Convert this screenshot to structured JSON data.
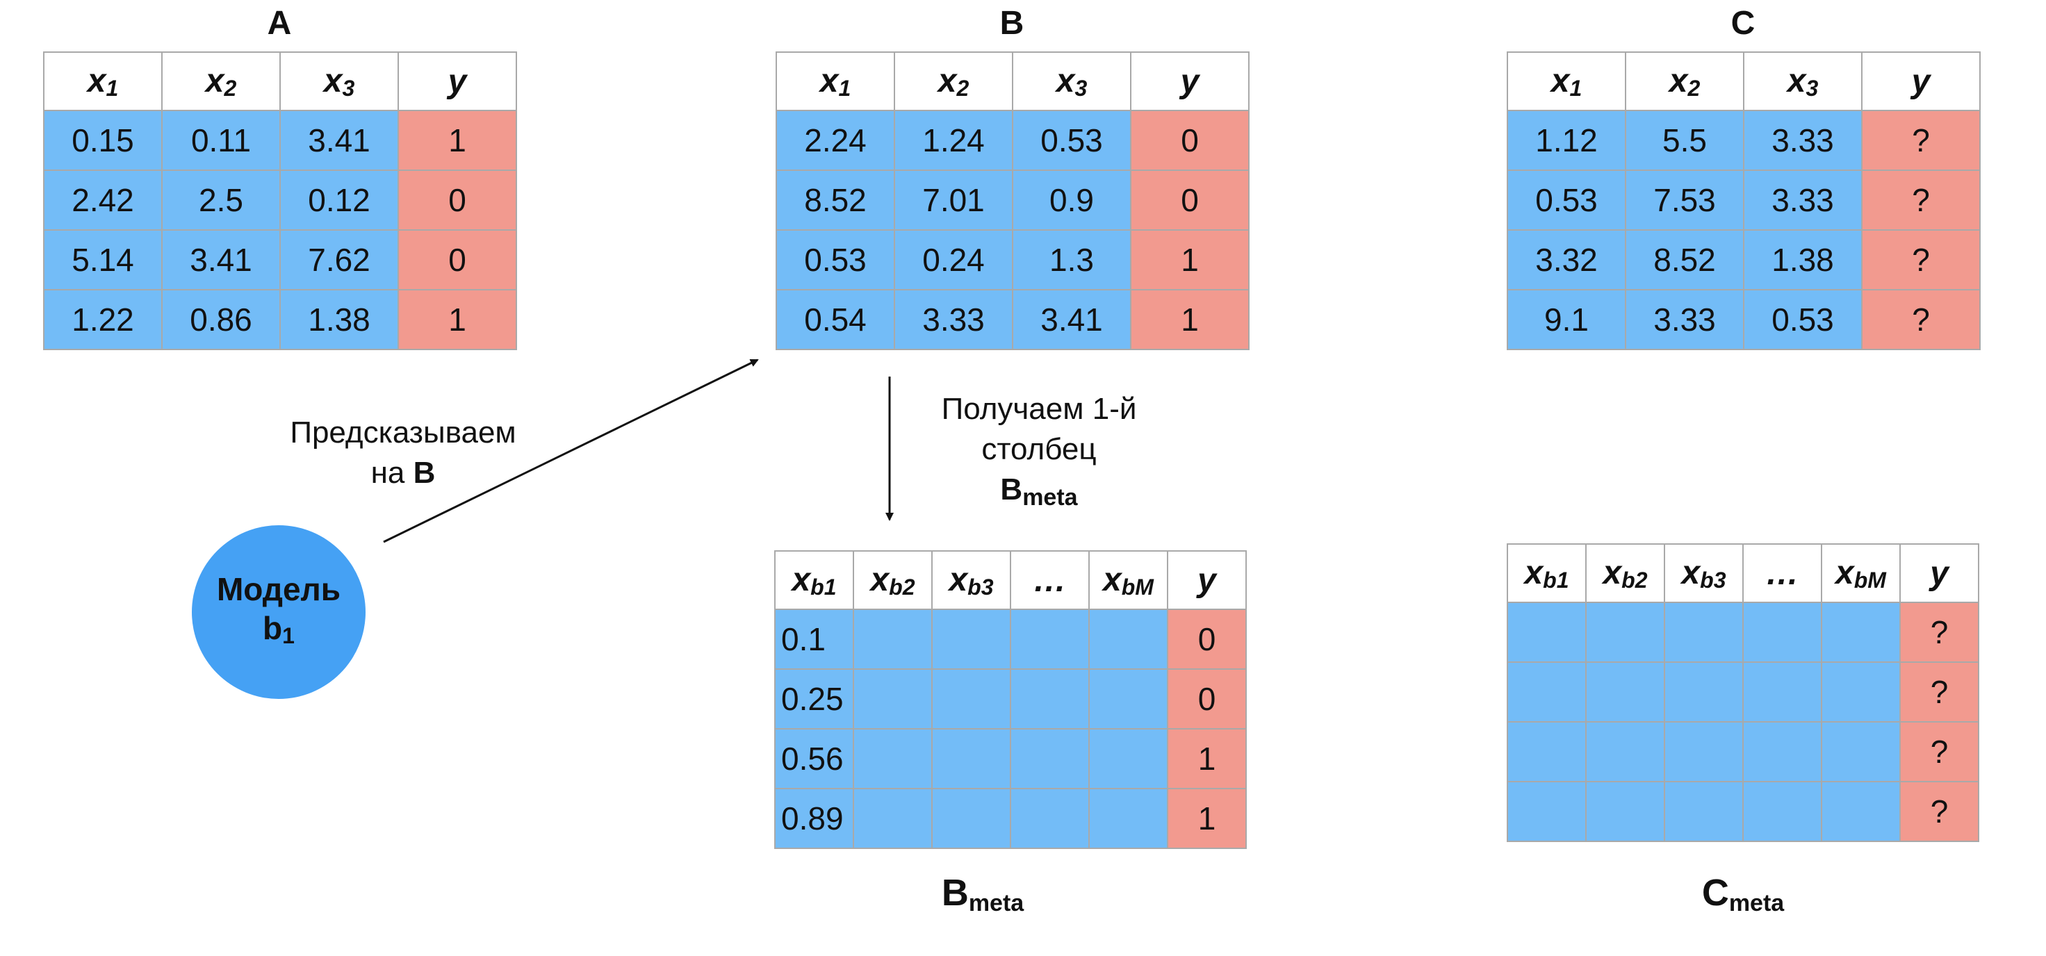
{
  "tables": {
    "A": {
      "title": "A",
      "headers": [
        {
          "base": "x",
          "sub": "1"
        },
        {
          "base": "x",
          "sub": "2"
        },
        {
          "base": "x",
          "sub": "3"
        },
        {
          "base": "y",
          "sub": ""
        }
      ],
      "rows": [
        [
          "0.15",
          "0.11",
          "3.41",
          "1"
        ],
        [
          "2.42",
          "2.5",
          "0.12",
          "0"
        ],
        [
          "5.14",
          "3.41",
          "7.62",
          "0"
        ],
        [
          "1.22",
          "0.86",
          "1.38",
          "1"
        ]
      ]
    },
    "B": {
      "title": "B",
      "headers": [
        {
          "base": "x",
          "sub": "1"
        },
        {
          "base": "x",
          "sub": "2"
        },
        {
          "base": "x",
          "sub": "3"
        },
        {
          "base": "y",
          "sub": ""
        }
      ],
      "rows": [
        [
          "2.24",
          "1.24",
          "0.53",
          "0"
        ],
        [
          "8.52",
          "7.01",
          "0.9",
          "0"
        ],
        [
          "0.53",
          "0.24",
          "1.3",
          "1"
        ],
        [
          "0.54",
          "3.33",
          "3.41",
          "1"
        ]
      ]
    },
    "C": {
      "title": "C",
      "headers": [
        {
          "base": "x",
          "sub": "1"
        },
        {
          "base": "x",
          "sub": "2"
        },
        {
          "base": "x",
          "sub": "3"
        },
        {
          "base": "y",
          "sub": ""
        }
      ],
      "rows": [
        [
          "1.12",
          "5.5",
          "3.33",
          "?"
        ],
        [
          "0.53",
          "7.53",
          "3.33",
          "?"
        ],
        [
          "3.32",
          "8.52",
          "1.38",
          "?"
        ],
        [
          "9.1",
          "3.33",
          "0.53",
          "?"
        ]
      ]
    },
    "B_meta": {
      "caption_base": "B",
      "caption_sub": "meta",
      "headers": [
        {
          "base": "x",
          "sub": "b1"
        },
        {
          "base": "x",
          "sub": "b2"
        },
        {
          "base": "x",
          "sub": "b3"
        },
        {
          "base": "…",
          "sub": ""
        },
        {
          "base": "x",
          "sub": "bM"
        },
        {
          "base": "y",
          "sub": ""
        }
      ],
      "rows": [
        [
          "0.1",
          "",
          "",
          "",
          "",
          "0"
        ],
        [
          "0.25",
          "",
          "",
          "",
          "",
          "0"
        ],
        [
          "0.56",
          "",
          "",
          "",
          "",
          "1"
        ],
        [
          "0.89",
          "",
          "",
          "",
          "",
          "1"
        ]
      ]
    },
    "C_meta": {
      "caption_base": "C",
      "caption_sub": "meta",
      "headers": [
        {
          "base": "x",
          "sub": "b1"
        },
        {
          "base": "x",
          "sub": "b2"
        },
        {
          "base": "x",
          "sub": "b3"
        },
        {
          "base": "…",
          "sub": ""
        },
        {
          "base": "x",
          "sub": "bM"
        },
        {
          "base": "y",
          "sub": ""
        }
      ],
      "rows": [
        [
          "",
          "",
          "",
          "",
          "",
          "?"
        ],
        [
          "",
          "",
          "",
          "",
          "",
          "?"
        ],
        [
          "",
          "",
          "",
          "",
          "",
          "?"
        ],
        [
          "",
          "",
          "",
          "",
          "",
          "?"
        ]
      ]
    }
  },
  "model": {
    "line1": "Модель",
    "line2_base": "b",
    "line2_sub": "1"
  },
  "predict_label": {
    "line1": "Предсказываем",
    "line2_prefix": "на ",
    "line2_bold": "B"
  },
  "get_column_label": {
    "line1": "Получаем 1-й",
    "line2": "столбец",
    "line3_base": "B",
    "line3_sub": "meta"
  },
  "colors": {
    "feature": "#73bcf7",
    "target": "#f29a8f",
    "model": "#45a1f4",
    "border": "#a9a9a9"
  }
}
